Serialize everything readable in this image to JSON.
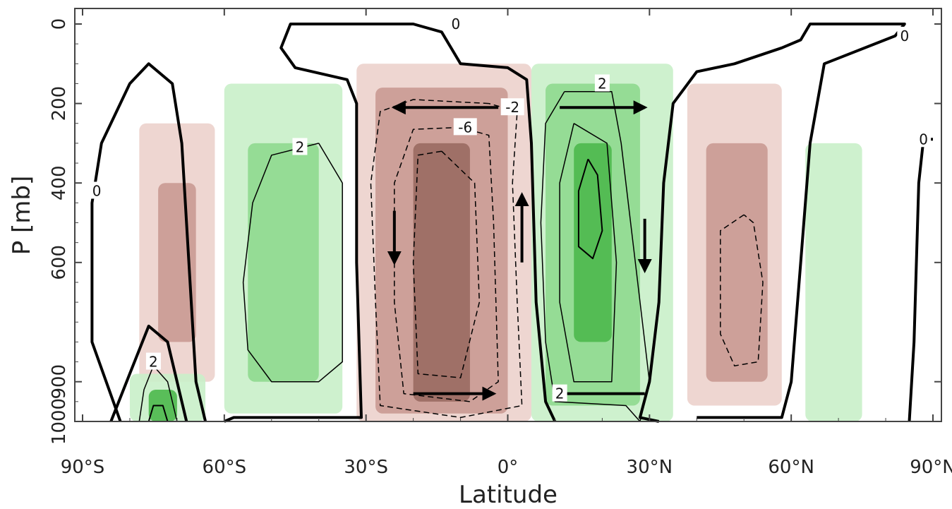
{
  "chart_data": {
    "type": "heatmap",
    "title": "",
    "xlabel": "Latitude",
    "ylabel": "P [mb]",
    "xlim": [
      -90,
      90
    ],
    "ylim": [
      1000,
      0
    ],
    "y_scale": "linear",
    "x_ticks": [
      {
        "value": -90,
        "label": "90°S"
      },
      {
        "value": -60,
        "label": "60°S"
      },
      {
        "value": -30,
        "label": "30°S"
      },
      {
        "value": 0,
        "label": "0°"
      },
      {
        "value": 30,
        "label": "30°N"
      },
      {
        "value": 60,
        "label": "60°N"
      },
      {
        "value": 90,
        "label": "90°N"
      }
    ],
    "y_ticks": [
      {
        "value": 0,
        "label": "0"
      },
      {
        "value": 200,
        "label": "200"
      },
      {
        "value": 400,
        "label": "400"
      },
      {
        "value": 600,
        "label": "600"
      },
      {
        "value": 900,
        "label": "900"
      },
      {
        "value": 1000,
        "label": "1000"
      }
    ],
    "colors": {
      "positive_light": "#c9efc9",
      "positive_mid": "#8fd98f",
      "positive_dark": "#4cb84c",
      "positive_core": "#2e9e2e",
      "negative_light": "#ecd2cc",
      "negative_mid": "#c99a92",
      "negative_dark": "#9a6a62",
      "contour": "#000000"
    },
    "cells": [
      {
        "lat": [
          -78,
          -62
        ],
        "p": [
          250,
          900
        ],
        "sign": "negative",
        "level": 1
      },
      {
        "lat": [
          -74,
          -66
        ],
        "p": [
          400,
          800
        ],
        "sign": "negative",
        "level": 2
      },
      {
        "lat": [
          -80,
          -64
        ],
        "p": [
          880,
          1000
        ],
        "sign": "positive",
        "level": 1
      },
      {
        "lat": [
          -76,
          -70
        ],
        "p": [
          920,
          1000
        ],
        "sign": "positive",
        "level": 3
      },
      {
        "lat": [
          -60,
          -35
        ],
        "p": [
          150,
          980
        ],
        "sign": "positive",
        "level": 1
      },
      {
        "lat": [
          -55,
          -40
        ],
        "p": [
          300,
          900
        ],
        "sign": "positive",
        "level": 2
      },
      {
        "lat": [
          -32,
          5
        ],
        "p": [
          100,
          1000
        ],
        "sign": "negative",
        "level": 1
      },
      {
        "lat": [
          -28,
          0
        ],
        "p": [
          160,
          980
        ],
        "sign": "negative",
        "level": 2
      },
      {
        "lat": [
          -20,
          -8
        ],
        "p": [
          300,
          950
        ],
        "sign": "negative",
        "level": 3
      },
      {
        "lat": [
          5,
          35
        ],
        "p": [
          100,
          1000
        ],
        "sign": "positive",
        "level": 1
      },
      {
        "lat": [
          8,
          28
        ],
        "p": [
          150,
          960
        ],
        "sign": "positive",
        "level": 2
      },
      {
        "lat": [
          14,
          22
        ],
        "p": [
          300,
          800
        ],
        "sign": "positive",
        "level": 3
      },
      {
        "lat": [
          38,
          58
        ],
        "p": [
          150,
          960
        ],
        "sign": "negative",
        "level": 1
      },
      {
        "lat": [
          42,
          55
        ],
        "p": [
          300,
          900
        ],
        "sign": "negative",
        "level": 2
      },
      {
        "lat": [
          63,
          75
        ],
        "p": [
          300,
          1000
        ],
        "sign": "positive",
        "level": 1
      }
    ],
    "contour_levels": [
      "-6",
      "-2",
      "0",
      "2"
    ],
    "contour_labels": [
      {
        "text": "0",
        "lat": -87,
        "p": 420
      },
      {
        "text": "0",
        "lat": -11,
        "p": 0
      },
      {
        "text": "0",
        "lat": 84,
        "p": 30
      },
      {
        "text": "0",
        "lat": 88,
        "p": 290
      },
      {
        "text": "2",
        "lat": -44,
        "p": 310
      },
      {
        "text": "2",
        "lat": -75,
        "p": 850
      },
      {
        "text": "2",
        "lat": 20,
        "p": 150
      },
      {
        "text": "2",
        "lat": 11,
        "p": 930
      },
      {
        "text": "-2",
        "lat": 1,
        "p": 210
      },
      {
        "text": "-6",
        "lat": -9,
        "p": 260
      }
    ],
    "arrows": [
      {
        "from": [
          -2,
          210
        ],
        "to": [
          -24,
          210
        ]
      },
      {
        "from": [
          -24,
          470
        ],
        "to": [
          -24,
          600
        ]
      },
      {
        "from": [
          -20,
          930
        ],
        "to": [
          -3,
          930
        ]
      },
      {
        "from": [
          3,
          600
        ],
        "to": [
          3,
          430
        ]
      },
      {
        "from": [
          11,
          210
        ],
        "to": [
          29,
          210
        ]
      },
      {
        "from": [
          29,
          490
        ],
        "to": [
          29,
          620
        ]
      },
      {
        "from": [
          29,
          930
        ],
        "to": [
          10,
          930
        ]
      }
    ]
  }
}
